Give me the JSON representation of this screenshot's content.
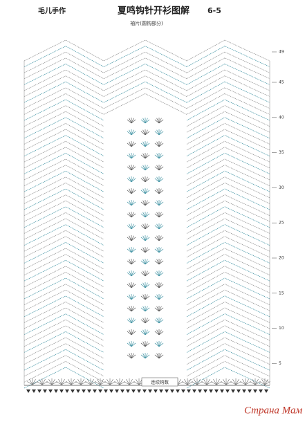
{
  "header": {
    "brand": "毛儿手作",
    "title": "夏鸣钩针开衫图解",
    "number": "6-5"
  },
  "diagram": {
    "caption": "袖片(圆钩部分)",
    "row_labels": [
      "49",
      "45",
      "40",
      "35",
      "30",
      "25",
      "20",
      "15",
      "10",
      "5"
    ],
    "base_label": "连续钩数"
  },
  "watermark": "Страна Мам"
}
